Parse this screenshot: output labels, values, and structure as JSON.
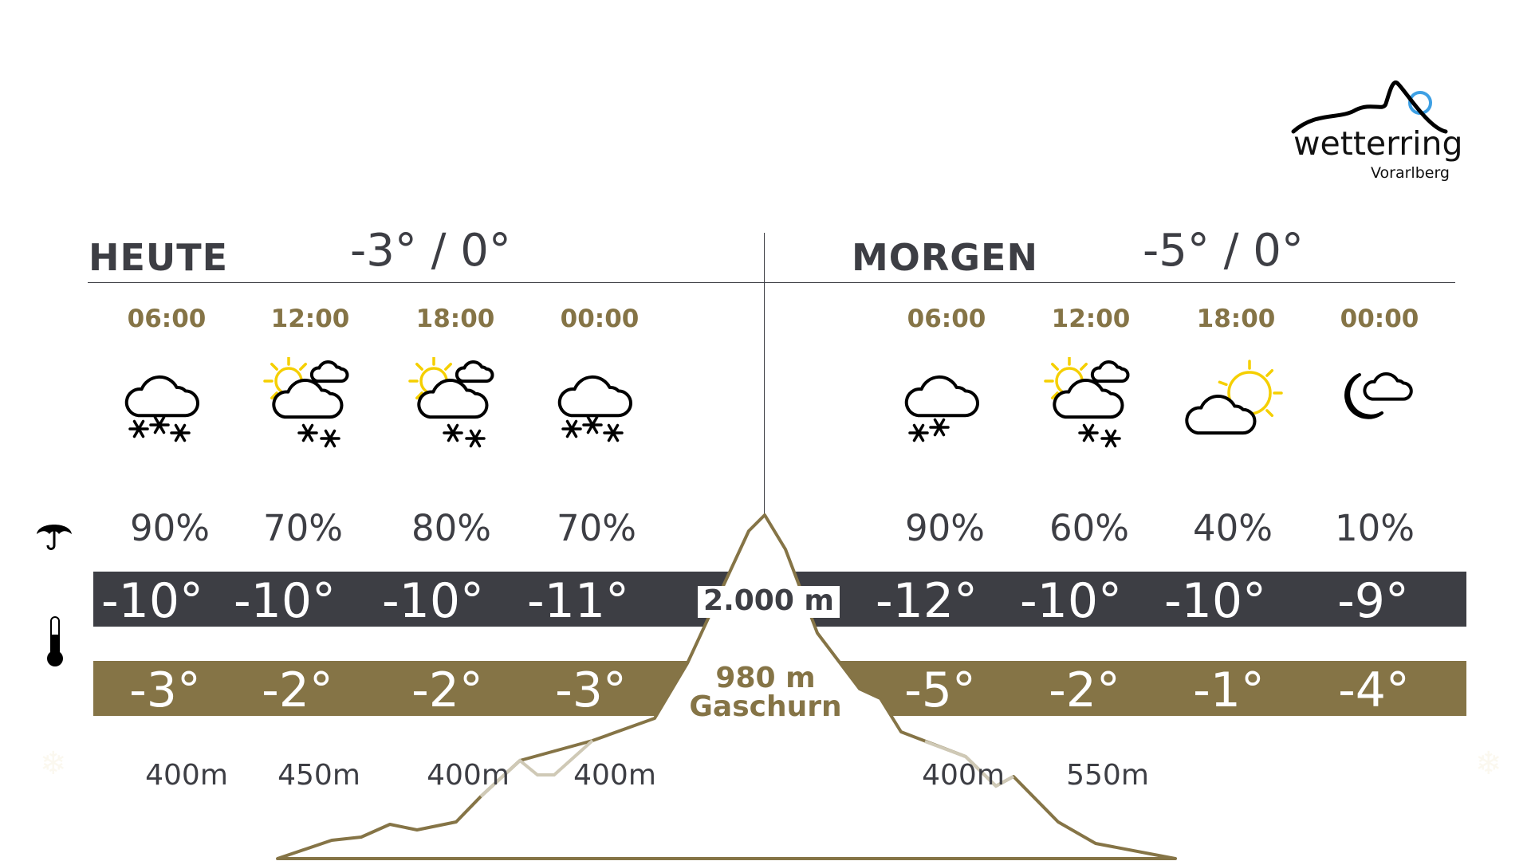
{
  "logo": {
    "brand": "wetterring",
    "region": "Vorarlberg"
  },
  "colors": {
    "gold": "#857446",
    "dark": "#3d3e44",
    "sun": "#f5cf00",
    "accent_blue": "#3ea0e4"
  },
  "today": {
    "label": "HEUTE",
    "range": "-3° / 0°",
    "slots": [
      {
        "time": "06:00",
        "icon": "cloud-snow",
        "precip": "90%",
        "temp_mountain": "-10°",
        "temp_valley": "-3°",
        "snowline": "400m"
      },
      {
        "time": "12:00",
        "icon": "sun-cloud-snow",
        "precip": "70%",
        "temp_mountain": "-10°",
        "temp_valley": "-2°",
        "snowline": "450m"
      },
      {
        "time": "18:00",
        "icon": "sun-cloud-snow",
        "precip": "80%",
        "temp_mountain": "-10°",
        "temp_valley": "-2°",
        "snowline": "400m"
      },
      {
        "time": "00:00",
        "icon": "cloud-snow",
        "precip": "70%",
        "temp_mountain": "-11°",
        "temp_valley": "-3°",
        "snowline": "400m"
      }
    ]
  },
  "tomorrow": {
    "label": "MORGEN",
    "range": "-5° / 0°",
    "slots": [
      {
        "time": "06:00",
        "icon": "cloud-snow-light",
        "precip": "90%",
        "temp_mountain": "-12°",
        "temp_valley": "-5°",
        "snowline": "400m"
      },
      {
        "time": "12:00",
        "icon": "sun-cloud-snow",
        "precip": "60%",
        "temp_mountain": "-10°",
        "temp_valley": "-2°",
        "snowline": "550m"
      },
      {
        "time": "18:00",
        "icon": "sun-cloud",
        "precip": "40%",
        "temp_mountain": "-10°",
        "temp_valley": "-1°",
        "snowline": ""
      },
      {
        "time": "00:00",
        "icon": "moon-cloud",
        "precip": "10%",
        "temp_mountain": "-9°",
        "temp_valley": "-4°",
        "snowline": ""
      }
    ]
  },
  "mountain": {
    "altitude": "2.000 m",
    "valley_altitude": "980 m",
    "valley_name": "Gaschurn"
  },
  "legend_icons": {
    "precip": "umbrella-icon",
    "temperature": "thermometer-icon",
    "snowline": "snowflake-drop-icon"
  }
}
